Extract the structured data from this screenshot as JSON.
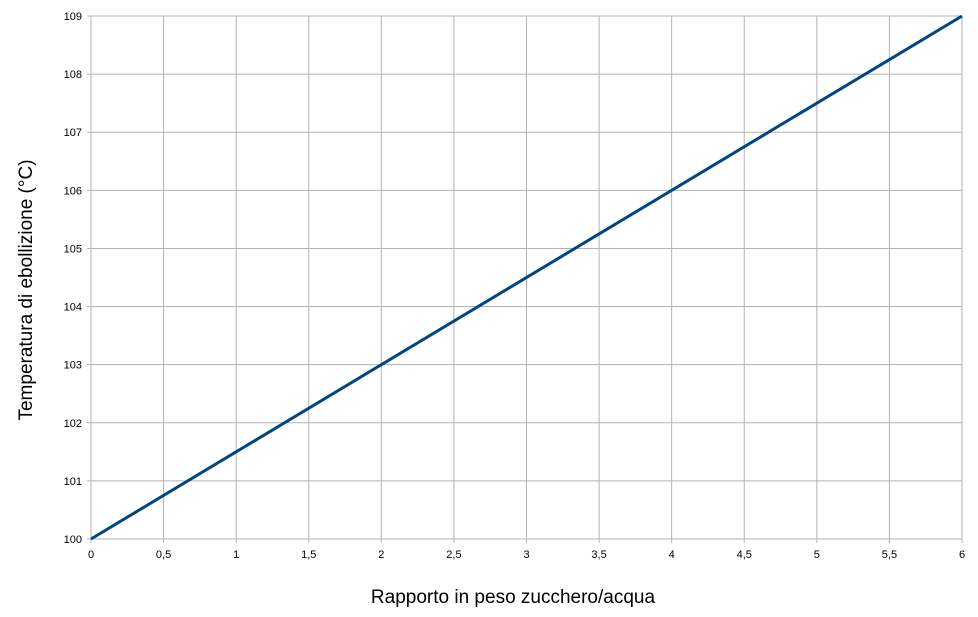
{
  "chart_data": {
    "type": "line",
    "title": "",
    "xlabel": "Rapporto in peso zucchero/acqua",
    "ylabel": "Temperatura di ebollizione (°C)",
    "xlim": [
      0,
      6
    ],
    "ylim": [
      100,
      109
    ],
    "x_ticks": [
      "0",
      "0,5",
      "1",
      "1,5",
      "2",
      "2,5",
      "3",
      "3,5",
      "4",
      "4,5",
      "5",
      "5,5",
      "6"
    ],
    "y_ticks": [
      "100",
      "101",
      "102",
      "103",
      "104",
      "105",
      "106",
      "107",
      "108",
      "109"
    ],
    "grid": true,
    "legend": "none",
    "series": [
      {
        "x": [
          0,
          6
        ],
        "y": [
          100,
          109
        ],
        "color": "#004586"
      }
    ],
    "grid_color": "#b3b3b3"
  }
}
